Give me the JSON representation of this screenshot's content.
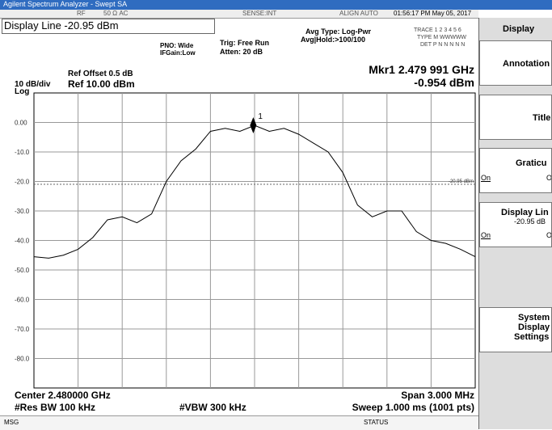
{
  "window": {
    "title": "Agilent Spectrum Analyzer - Swept SA"
  },
  "status_bar": {
    "rf": "RF",
    "coupling": "50 Ω  AC",
    "sense": "SENSE:INT",
    "align": "ALIGN AUTO",
    "time": "01:56:17 PM May 05, 2017"
  },
  "header": {
    "active_function": "Display Line -20.95 dBm",
    "pno": "PNO: Wide",
    "ifgain": "IFGain:Low",
    "trig": "Trig: Free Run",
    "atten": "Atten: 20 dB",
    "avg_type": "Avg Type: Log-Pwr",
    "avg_hold": "Avg|Hold:>100/100",
    "trace": "TRACE 1 2 3 4 5 6",
    "type": "TYPE M WWWWW",
    "det": "DET P N N N N N",
    "marker_freq": "Mkr1 2.479 991 GHz",
    "marker_amp": "-0.954 dBm",
    "ref_offset": "Ref Offset 0.5 dB",
    "scale": "10 dB/div",
    "ref_level": "Ref 10.00 dBm",
    "log": "Log"
  },
  "chart_data": {
    "type": "line",
    "xlim": [
      2.4785,
      2.4815
    ],
    "ylim": [
      -90,
      10
    ],
    "yticks": [
      {
        "value": 0,
        "label": "0.00"
      },
      {
        "value": -10,
        "label": "-10.0"
      },
      {
        "value": -20,
        "label": "-20.0"
      },
      {
        "value": -30,
        "label": "-30.0"
      },
      {
        "value": -40,
        "label": "-40.0"
      },
      {
        "value": -50,
        "label": "-50.0"
      },
      {
        "value": -60,
        "label": "-60.0"
      },
      {
        "value": -70,
        "label": "-70.0"
      },
      {
        "value": -80,
        "label": "-80.0"
      }
    ],
    "grid": true,
    "x": [
      2.4785,
      2.4786,
      2.4787,
      2.4788,
      2.4789,
      2.479,
      2.4791,
      2.4792,
      2.4793,
      2.4794,
      2.4795,
      2.4796,
      2.4797,
      2.4798,
      2.4799,
      2.48,
      2.4801,
      2.4802,
      2.4803,
      2.4804,
      2.4805,
      2.4806,
      2.4807,
      2.4808,
      2.4809,
      2.481,
      2.4811,
      2.4812,
      2.4813,
      2.4814,
      2.4815
    ],
    "series": [
      {
        "color": "#000000",
        "values": [
          -45.5,
          -46,
          -45,
          -43,
          -39,
          -33,
          -32,
          -34,
          -31,
          -20,
          -13,
          -9,
          -3,
          -2,
          -3,
          -1,
          -3,
          -2,
          -4,
          -7,
          -10,
          -17,
          -28,
          -32,
          -30,
          -30,
          -37,
          -40,
          -41,
          -43,
          -45.5
        ]
      }
    ],
    "marker": {
      "x": 2.479991,
      "value": -0.954,
      "label": "1"
    },
    "display_line": {
      "value": -20.95,
      "value_label": "-20.95 dBm"
    }
  },
  "footer": {
    "center": "Center 2.480000 GHz",
    "rbw": "#Res BW 100 kHz",
    "vbw": "#VBW 300 kHz",
    "span": "Span 3.000 MHz",
    "sweep": "Sweep  1.000 ms (1001 pts)",
    "msg": "MSG",
    "status": "STATUS"
  },
  "menu": {
    "title": "Display",
    "items": [
      "Annotation",
      "Title",
      "Graticu",
      "On",
      "O",
      "Display Lin",
      "-20.95 dB",
      "On",
      "O",
      "System",
      "Display",
      "Settings"
    ]
  }
}
